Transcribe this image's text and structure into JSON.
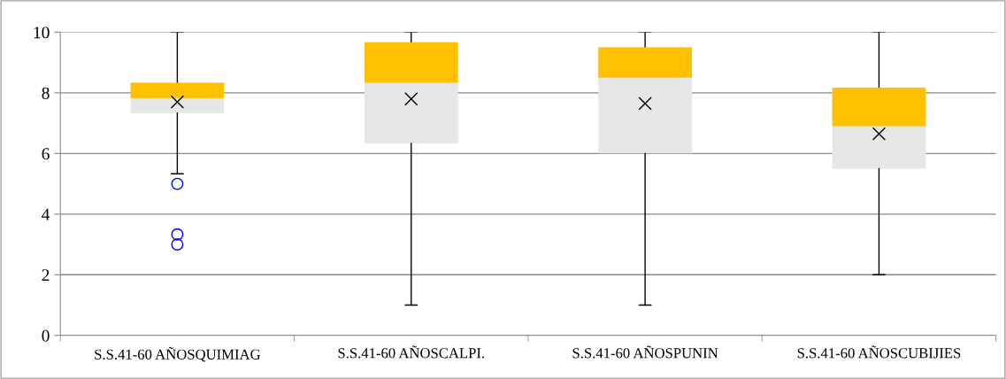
{
  "chart_data": {
    "type": "box",
    "categories": [
      "S.S.41-60 AÑOSQUIMIAG",
      "S.S.41-60 AÑOSCALPI.",
      "S.S.41-60 AÑOSPUNIN",
      "S.S.41-60 AÑOSCUBIJIES"
    ],
    "series": [
      {
        "color": "#ffc000",
        "colors": [
          "#e6e6e6",
          "#e6e6e6",
          "#e6e6e6",
          "#e6e6e6"
        ],
        "boxes": [
          {
            "low": 5.33,
            "q1": 7.33,
            "median": 7.83,
            "q3": 8.33,
            "high": 10,
            "mean": 7.7,
            "outliers": [
              5,
              3.33,
              3
            ]
          },
          {
            "low": 1,
            "q1": 6.33,
            "median": 8.33,
            "q3": 9.67,
            "high": 10,
            "mean": 7.8
          },
          {
            "low": 1,
            "q1": 6.0,
            "median": 8.5,
            "q3": 9.5,
            "high": 10,
            "mean": 7.65
          },
          {
            "low": 2,
            "q1": 5.5,
            "median": 6.9,
            "q3": 8.17,
            "high": 10,
            "mean": 6.65
          }
        ]
      }
    ],
    "ylim": [
      0,
      10
    ],
    "yticks": [
      0,
      2,
      4,
      6,
      8,
      10
    ],
    "grid": "y",
    "marker": "cross"
  }
}
